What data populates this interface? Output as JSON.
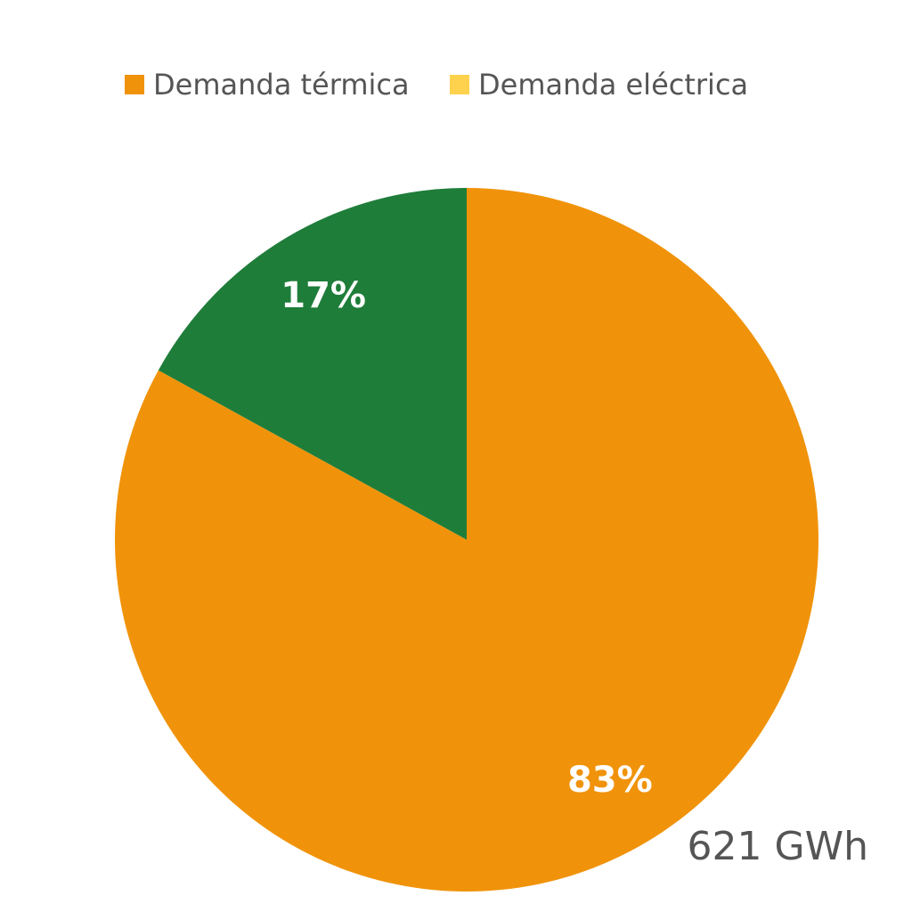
{
  "chart_data": {
    "type": "pie",
    "categories": [
      "Demanda térmica",
      "Demanda eléctrica"
    ],
    "values": [
      83,
      17
    ],
    "value_labels": [
      "83%",
      "17%"
    ],
    "colors": [
      "#f0930a",
      "#1f7d3a"
    ],
    "legend_colors": [
      "#f0930a",
      "#ffd24d"
    ],
    "annotation": "621 GWh"
  }
}
